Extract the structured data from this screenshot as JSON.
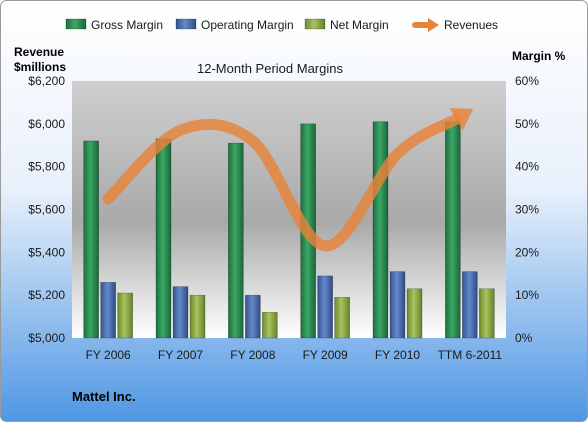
{
  "chart_data": {
    "type": "bar",
    "title": "12-Month Period Margins",
    "company": "Mattel Inc.",
    "categories": [
      "FY 2006",
      "FY 2007",
      "FY 2008",
      "FY 2009",
      "FY 2010",
      "TTM 6-2011"
    ],
    "left_axis": {
      "label_line1": "Revenue",
      "label_line2": "$millions",
      "range": [
        5000,
        6200
      ],
      "ticks": [
        "$5,000",
        "$5,200",
        "$5,400",
        "$5,600",
        "$5,800",
        "$6,000",
        "$6,200"
      ]
    },
    "right_axis": {
      "label": "Margin %",
      "range": [
        0,
        60
      ],
      "ticks": [
        "0%",
        "10%",
        "20%",
        "30%",
        "40%",
        "50%",
        "60%"
      ]
    },
    "legend": [
      "Gross Margin",
      "Operating Margin",
      "Net Margin",
      "Revenues"
    ],
    "legend_position": "top",
    "grid": false,
    "series": [
      {
        "name": "Gross Margin",
        "axis": "right",
        "color": "#2e8b57",
        "values": [
          46.0,
          46.5,
          45.5,
          50.0,
          50.5,
          50.5
        ]
      },
      {
        "name": "Operating Margin",
        "axis": "right",
        "color": "#4a6fb0",
        "values": [
          13.0,
          12.0,
          10.0,
          14.5,
          15.5,
          15.5
        ]
      },
      {
        "name": "Net Margin",
        "axis": "right",
        "color": "#8fae45",
        "values": [
          10.5,
          10.0,
          6.0,
          9.5,
          11.5,
          11.5
        ]
      },
      {
        "name": "Revenues",
        "axis": "left",
        "color": "#e8833a",
        "type": "trend-arrow",
        "values": [
          5650,
          5970,
          5920,
          5430,
          5860,
          6060
        ]
      }
    ]
  }
}
